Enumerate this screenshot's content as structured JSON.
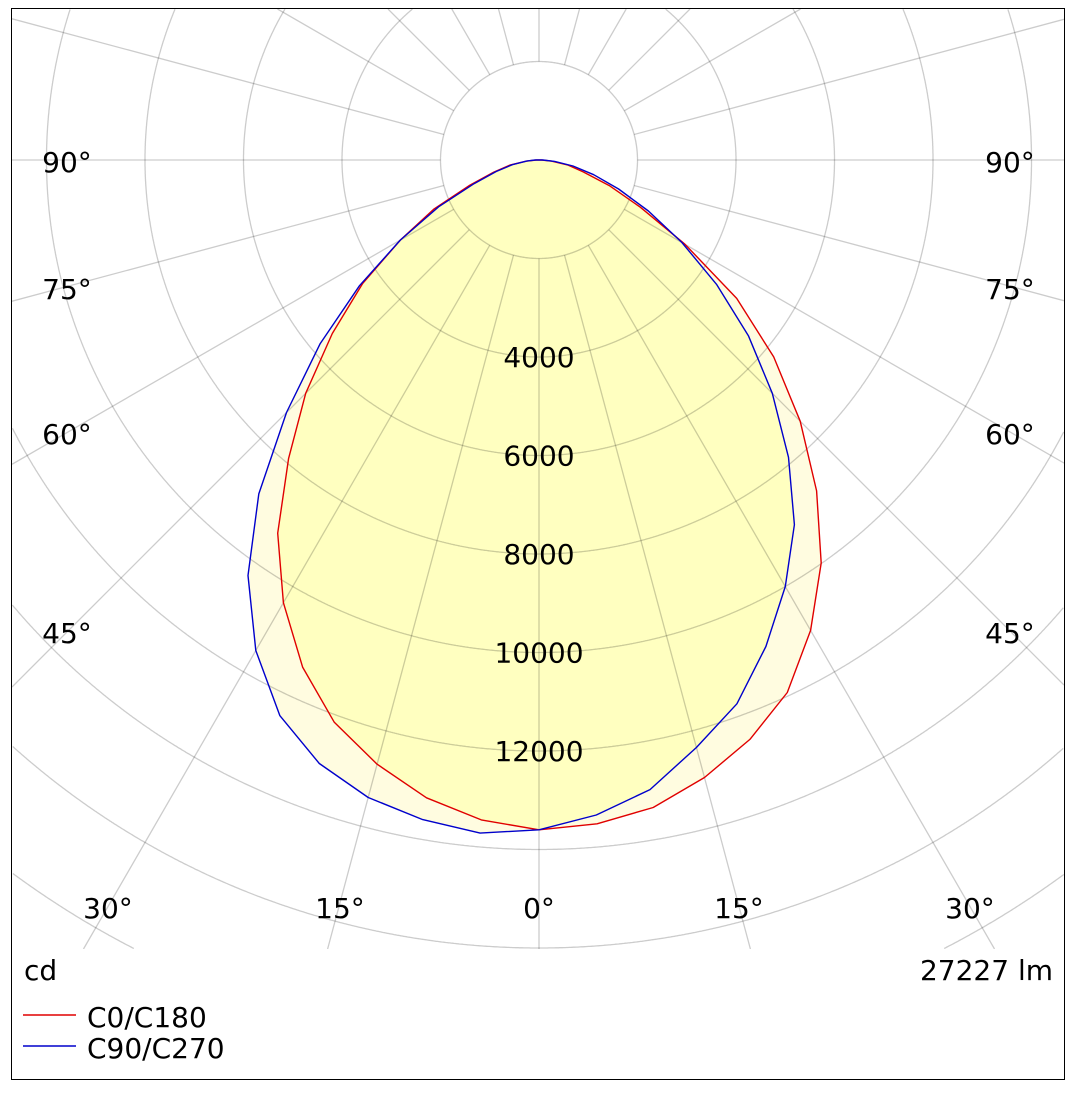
{
  "chart_data": {
    "type": "polar",
    "title": "",
    "unit_label": "cd",
    "flux_label": "27227 lm",
    "radial_ticks": [
      2000,
      4000,
      6000,
      8000,
      10000,
      12000,
      14000,
      16000,
      18000,
      20000,
      22000,
      24000,
      26000,
      28000
    ],
    "radial_tick_labels": [
      "4000",
      "6000",
      "8000",
      "10000",
      "12000"
    ],
    "radial_label_values": [
      4000,
      6000,
      8000,
      10000,
      12000
    ],
    "angle_step_deg": 15,
    "angle_labels": {
      "bottom": [
        "30°",
        "15°",
        "0°",
        "15°",
        "30°"
      ],
      "left": [
        "90°",
        "75°",
        "60°",
        "45°"
      ],
      "right": [
        "90°",
        "75°",
        "60°",
        "45°"
      ]
    },
    "gamma": [
      0,
      5,
      10,
      15,
      20,
      25,
      30,
      35,
      40,
      45,
      50,
      55,
      60,
      65,
      70,
      75,
      80,
      85,
      90
    ],
    "series": [
      {
        "name": "C0/C180",
        "color": "#e00000",
        "right_C0": [
          13600,
          13530,
          13350,
          12980,
          12520,
          11930,
          11030,
          9990,
          8770,
          7500,
          6220,
          4900,
          3420,
          2270,
          1520,
          930,
          600,
          250,
          50
        ],
        "left_C180": [
          13600,
          13450,
          13150,
          12700,
          12150,
          11360,
          10380,
          9250,
          7910,
          6700,
          5480,
          4370,
          3250,
          2350,
          1490,
          950,
          600,
          250,
          50
        ]
      },
      {
        "name": "C90/C270",
        "color": "#0000cc",
        "right_C90": [
          13600,
          13350,
          12980,
          12350,
          11750,
          10900,
          10000,
          9040,
          7880,
          6700,
          5550,
          4400,
          3350,
          2450,
          1720,
          1150,
          700,
          320,
          80
        ],
        "left_C270": [
          13600,
          13720,
          13600,
          13400,
          13040,
          12450,
          11500,
          10300,
          8850,
          7250,
          5800,
          4450,
          3250,
          2250,
          1400,
          900,
          550,
          250,
          80
        ]
      }
    ],
    "fill_colors": {
      "outer": "#fffce0",
      "inner": "#ffffc0"
    },
    "grid": true,
    "legend_position": "bottom-left"
  }
}
